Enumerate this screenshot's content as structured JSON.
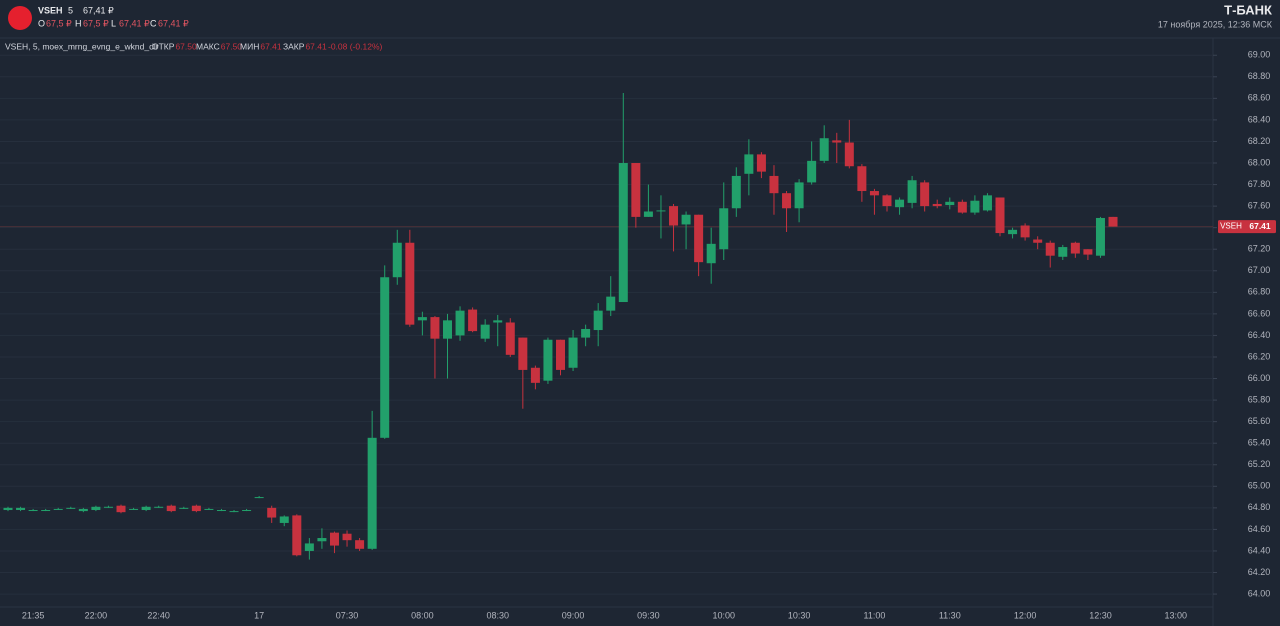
{
  "header": {
    "ticker": "VSEH",
    "interval": "5",
    "price": "67,41 ₽",
    "ohlc": [
      {
        "key": "O",
        "value": "67,5 ₽"
      },
      {
        "key": "H",
        "value": "67,5 ₽"
      },
      {
        "key": "L",
        "value": "67,41 ₽"
      },
      {
        "key": "C",
        "value": "67,41 ₽"
      }
    ],
    "brand": "Т-БАНК",
    "datetime": "17 ноября 2025, 12:36 МСК"
  },
  "legend": {
    "title": "VSEH, 5, moex_mrng_evng_e_wknd_dlr",
    "items": [
      {
        "key": "ОТКР",
        "value": "67.50"
      },
      {
        "key": "МАКС",
        "value": "67.50"
      },
      {
        "key": "МИН",
        "value": "67.41"
      },
      {
        "key": "ЗАКР",
        "value": "67.41"
      }
    ],
    "change": "-0.08 (-0.12%)"
  },
  "chart_data": {
    "type": "candlestick",
    "categories": [
      null,
      null,
      "21:35",
      null,
      null,
      null,
      null,
      "22:00",
      null,
      null,
      null,
      null,
      "22:40",
      null,
      null,
      null,
      null,
      null,
      null,
      null,
      "17",
      null,
      null,
      null,
      null,
      null,
      null,
      "07:30",
      null,
      null,
      null,
      null,
      null,
      "08:00",
      null,
      null,
      null,
      null,
      null,
      "08:30",
      null,
      null,
      null,
      null,
      null,
      "09:00",
      null,
      null,
      null,
      null,
      null,
      "09:30",
      null,
      null,
      null,
      null,
      null,
      "10:00",
      null,
      null,
      null,
      null,
      null,
      "10:30",
      null,
      null,
      null,
      null,
      null,
      "11:00",
      null,
      null,
      null,
      null,
      null,
      "11:30",
      null,
      null,
      null,
      null,
      null,
      "12:00",
      null,
      null,
      null,
      null,
      null,
      "12:30",
      null,
      null,
      null,
      null,
      null,
      "13:00",
      null,
      null
    ],
    "open": [
      64.78,
      64.78,
      64.78,
      64.78,
      64.79,
      64.8,
      64.77,
      64.78,
      64.81,
      64.82,
      64.79,
      64.78,
      64.81,
      64.82,
      64.8,
      64.82,
      64.79,
      64.78,
      64.77,
      64.78,
      64.9,
      64.8,
      64.66,
      64.73,
      64.4,
      64.49,
      64.57,
      64.56,
      64.5,
      64.42,
      65.45,
      66.94,
      67.26,
      66.54,
      66.57,
      66.37,
      66.4,
      66.64,
      66.37,
      66.52,
      66.52,
      66.38,
      66.1,
      65.98,
      66.36,
      66.1,
      66.38,
      66.45,
      66.63,
      66.71,
      68.0,
      67.5,
      67.56,
      67.6,
      67.43,
      67.52,
      67.07,
      67.2,
      67.58,
      67.9,
      68.08,
      67.88,
      67.72,
      67.58,
      67.82,
      68.02,
      68.21,
      68.19,
      67.97,
      67.74,
      67.7,
      67.59,
      67.63,
      67.82,
      67.62,
      67.61,
      67.64,
      67.54,
      67.56,
      67.68,
      67.34,
      67.42,
      67.29,
      67.26,
      67.13,
      67.26,
      67.2,
      67.14,
      67.5,
      null,
      null,
      null,
      null,
      null,
      null,
      null
    ],
    "high": [
      64.81,
      64.81,
      64.79,
      64.79,
      64.8,
      64.81,
      64.8,
      64.82,
      64.82,
      64.83,
      64.8,
      64.82,
      64.82,
      64.83,
      64.81,
      64.83,
      64.8,
      64.79,
      64.78,
      64.79,
      64.91,
      64.82,
      64.73,
      64.74,
      64.52,
      64.61,
      64.58,
      64.59,
      64.52,
      65.7,
      67.05,
      67.38,
      67.38,
      66.62,
      66.58,
      66.6,
      66.67,
      66.66,
      66.55,
      66.59,
      66.56,
      66.38,
      66.12,
      66.38,
      66.36,
      66.45,
      66.5,
      66.7,
      66.95,
      68.65,
      68.0,
      67.8,
      67.7,
      67.62,
      67.55,
      67.52,
      67.4,
      67.82,
      67.96,
      68.22,
      68.1,
      67.98,
      67.74,
      67.85,
      68.2,
      68.35,
      68.28,
      68.4,
      67.99,
      67.76,
      67.71,
      67.68,
      67.88,
      67.84,
      67.66,
      67.68,
      67.66,
      67.7,
      67.72,
      67.68,
      67.4,
      67.44,
      67.32,
      67.28,
      67.24,
      67.27,
      67.2,
      67.5,
      67.5,
      null,
      null,
      null,
      null,
      null,
      null,
      null
    ],
    "low": [
      64.77,
      64.77,
      64.77,
      64.77,
      64.78,
      64.79,
      64.76,
      64.77,
      64.8,
      64.75,
      64.78,
      64.77,
      64.8,
      64.76,
      64.79,
      64.76,
      64.78,
      64.77,
      64.76,
      64.77,
      64.89,
      64.66,
      64.63,
      64.35,
      64.32,
      64.42,
      64.38,
      64.44,
      64.4,
      64.41,
      65.44,
      66.87,
      66.48,
      66.4,
      66.0,
      66.0,
      66.35,
      66.43,
      66.34,
      66.3,
      66.2,
      65.72,
      65.9,
      65.95,
      66.03,
      66.07,
      66.3,
      66.3,
      66.58,
      66.71,
      67.4,
      67.5,
      67.3,
      67.18,
      67.2,
      66.95,
      66.88,
      67.1,
      67.5,
      67.7,
      67.86,
      67.52,
      67.36,
      67.45,
      67.8,
      68.0,
      68.0,
      67.95,
      67.64,
      67.52,
      67.55,
      67.52,
      67.58,
      67.55,
      67.58,
      67.57,
      67.53,
      67.52,
      67.55,
      67.32,
      67.3,
      67.28,
      67.2,
      67.03,
      67.1,
      67.12,
      67.1,
      67.12,
      67.41,
      null,
      null,
      null,
      null,
      null,
      null,
      null
    ],
    "close": [
      64.8,
      64.8,
      64.78,
      64.78,
      64.79,
      64.8,
      64.79,
      64.81,
      64.81,
      64.76,
      64.79,
      64.81,
      64.81,
      64.77,
      64.8,
      64.77,
      64.79,
      64.78,
      64.77,
      64.78,
      64.9,
      64.71,
      64.72,
      64.36,
      64.47,
      64.52,
      64.45,
      64.5,
      64.42,
      65.45,
      66.94,
      67.26,
      66.5,
      66.57,
      66.37,
      66.54,
      66.63,
      66.44,
      66.5,
      66.54,
      66.22,
      66.08,
      65.96,
      66.36,
      66.08,
      66.38,
      66.46,
      66.63,
      66.76,
      68.0,
      67.5,
      67.55,
      67.56,
      67.42,
      67.52,
      67.08,
      67.25,
      67.58,
      67.88,
      68.08,
      67.92,
      67.72,
      67.58,
      67.82,
      68.02,
      68.23,
      68.19,
      67.97,
      67.74,
      67.7,
      67.6,
      67.66,
      67.84,
      67.6,
      67.6,
      67.64,
      67.54,
      67.65,
      67.7,
      67.35,
      67.38,
      67.31,
      67.26,
      67.14,
      67.22,
      67.16,
      67.15,
      67.49,
      67.41,
      null,
      null,
      null,
      null,
      null,
      null,
      null
    ],
    "up_color": "#22a06b",
    "down_color": "#c8323f",
    "ylim": [
      63.88,
      69.16
    ],
    "yticks": [
      {
        "value": 64,
        "label": "64.00"
      },
      {
        "value": 64.2,
        "label": "64.20"
      },
      {
        "value": 64.4,
        "label": "64.40"
      },
      {
        "value": 64.6,
        "label": "64.60"
      },
      {
        "value": 64.8,
        "label": "64.80"
      },
      {
        "value": 65,
        "label": "65.00"
      },
      {
        "value": 65.2,
        "label": "65.20"
      },
      {
        "value": 65.4,
        "label": "65.40"
      },
      {
        "value": 65.6,
        "label": "65.60"
      },
      {
        "value": 65.8,
        "label": "65.80"
      },
      {
        "value": 66,
        "label": "66.00"
      },
      {
        "value": 66.2,
        "label": "66.20"
      },
      {
        "value": 66.4,
        "label": "66.40"
      },
      {
        "value": 66.6,
        "label": "66.60"
      },
      {
        "value": 66.8,
        "label": "66.80"
      },
      {
        "value": 67,
        "label": "67.00"
      },
      {
        "value": 67.2,
        "label": "67.20"
      },
      {
        "value": 67.4,
        "label": "67.40"
      },
      {
        "value": 67.6,
        "label": "67.60"
      },
      {
        "value": 67.8,
        "label": "67.80"
      },
      {
        "value": 68,
        "label": "68.00"
      },
      {
        "value": 68.2,
        "label": "68.20"
      },
      {
        "value": 68.4,
        "label": "68.40"
      },
      {
        "value": 68.6,
        "label": "68.60"
      },
      {
        "value": 68.8,
        "label": "68.80"
      },
      {
        "value": 69,
        "label": "69.00"
      }
    ],
    "grid": true,
    "last_price": {
      "name": "VSEH",
      "value": 67.41,
      "label": "67.41"
    }
  }
}
